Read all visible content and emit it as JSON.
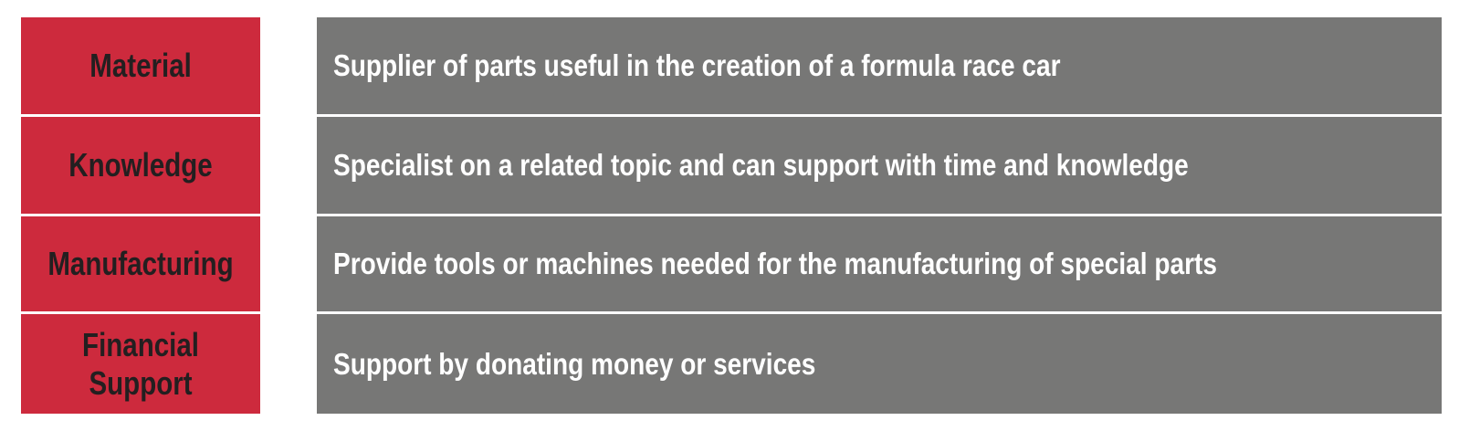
{
  "rows": [
    {
      "category": "Material",
      "description": "Supplier of parts useful in the creation of a formula race car"
    },
    {
      "category": "Knowledge",
      "description": "Specialist on a related topic and can support with time and knowledge"
    },
    {
      "category": "Manufacturing",
      "description": "Provide tools or machines needed for the manufacturing of special parts"
    },
    {
      "category": "Financial\nSupport",
      "description": "Support by donating money or services"
    }
  ],
  "colors": {
    "category_bg": "#cd2a3d",
    "category_text": "#231f20",
    "description_bg": "#777776",
    "description_text": "#ffffff"
  }
}
